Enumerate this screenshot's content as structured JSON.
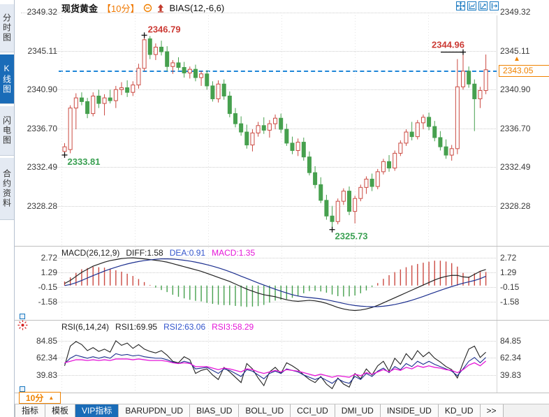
{
  "header": {
    "symbol": "现货黄金",
    "period": "【10分】",
    "indicator": "BIAS(12,-6,6)"
  },
  "toolbar": {
    "window_icons": [
      "move-chart",
      "fit-chart",
      "scale-chart",
      "popout-chart"
    ]
  },
  "sidebar": {
    "items": [
      {
        "label": "分时图",
        "active": false
      },
      {
        "label": "K线图",
        "active": true
      },
      {
        "label": "闪电图",
        "active": false
      },
      {
        "label": "合约资料",
        "active": false
      }
    ]
  },
  "price_panel": {
    "current_price": "2343.05",
    "axis": [
      {
        "t": "2349.32",
        "v": 2349.32
      },
      {
        "t": "2345.11",
        "v": 2345.11
      },
      {
        "t": "2340.90",
        "v": 2340.9
      },
      {
        "t": "2336.70",
        "v": 2336.7
      },
      {
        "t": "2332.49",
        "v": 2332.49
      },
      {
        "t": "2328.28",
        "v": 2328.28
      }
    ]
  },
  "macd_panel": {
    "title": "MACD(26,12,9)",
    "diff_label": "DIFF:1.58",
    "dea_label": "DEA:0.91",
    "macd_label": "MACD:1.35",
    "axis": [
      {
        "t": "2.72",
        "v": 2.72
      },
      {
        "t": "1.29",
        "v": 1.29
      },
      {
        "t": "-0.15",
        "v": -0.15
      },
      {
        "t": "-1.58",
        "v": -1.58
      }
    ]
  },
  "rsi_panel": {
    "title": "RSI(6,14,24)",
    "rsi1_label": "RSI1:69.95",
    "rsi2_label": "RSI2:63.06",
    "rsi3_label": "RSI3:58.29",
    "axis": [
      {
        "t": "84.85",
        "v": 84.85
      },
      {
        "t": "62.34",
        "v": 62.34
      },
      {
        "t": "39.83",
        "v": 39.83
      }
    ]
  },
  "footer": {
    "period_label": "10分",
    "tabs": [
      {
        "label": "指标",
        "active": false
      },
      {
        "label": "模板",
        "active": false
      },
      {
        "label": "VIP指标",
        "active": true
      },
      {
        "label": "BARUPDN_UD",
        "active": false
      },
      {
        "label": "BIAS_UD",
        "active": false
      },
      {
        "label": "BOLL_UD",
        "active": false
      },
      {
        "label": "CCI_UD",
        "active": false
      },
      {
        "label": "DMI_UD",
        "active": false
      },
      {
        "label": "INSIDE_UD",
        "active": false
      },
      {
        "label": "KD_UD",
        "active": false
      },
      {
        "label": ">>",
        "active": false
      }
    ]
  },
  "colors": {
    "up": "#cb4a42",
    "down": "#46a04e",
    "diff_line": "#222222",
    "dea_line": "#1c2f8f",
    "rsi1_line": "#222222",
    "rsi2_line": "#1c2f8f",
    "rsi3_line": "#e516d8",
    "accent_blue": "#1a6cb8",
    "accent_orange": "#ef8200",
    "dashed_price": "#1f86d8",
    "grid": "#cdcdcd"
  },
  "chart_data": {
    "type": "candlestick_with_indicators",
    "x_unit": "10-minute bars",
    "current_price": 2343.05,
    "candles": [
      [
        2334.2,
        2335.1,
        2333.81,
        2334.7
      ],
      [
        2334.4,
        2339.2,
        2334.0,
        2338.9
      ],
      [
        2338.9,
        2340.5,
        2336.6,
        2340.0
      ],
      [
        2340.0,
        2340.6,
        2339.2,
        2339.6
      ],
      [
        2339.6,
        2340.0,
        2337.8,
        2338.3
      ],
      [
        2338.3,
        2340.6,
        2338.0,
        2340.2
      ],
      [
        2340.2,
        2340.9,
        2338.9,
        2339.4
      ],
      [
        2339.4,
        2340.4,
        2338.1,
        2340.0
      ],
      [
        2340.0,
        2340.9,
        2339.4,
        2339.7
      ],
      [
        2339.7,
        2341.3,
        2338.9,
        2340.9
      ],
      [
        2340.9,
        2341.7,
        2340.3,
        2341.1
      ],
      [
        2341.1,
        2341.9,
        2340.1,
        2340.6
      ],
      [
        2340.6,
        2341.8,
        2340.2,
        2341.4
      ],
      [
        2341.4,
        2343.7,
        2341.0,
        2343.2
      ],
      [
        2343.2,
        2346.79,
        2342.9,
        2346.3
      ],
      [
        2346.4,
        2346.7,
        2344.2,
        2344.7
      ],
      [
        2344.7,
        2345.9,
        2344.1,
        2345.5
      ],
      [
        2345.5,
        2346.2,
        2344.6,
        2345.0
      ],
      [
        2345.0,
        2345.6,
        2342.9,
        2343.4
      ],
      [
        2343.4,
        2344.1,
        2342.6,
        2343.8
      ],
      [
        2343.8,
        2344.4,
        2343.0,
        2343.3
      ],
      [
        2343.3,
        2343.9,
        2342.2,
        2342.7
      ],
      [
        2342.7,
        2343.4,
        2342.1,
        2343.1
      ],
      [
        2343.1,
        2343.6,
        2341.8,
        2342.2
      ],
      [
        2342.2,
        2342.9,
        2341.3,
        2342.6
      ],
      [
        2342.6,
        2343.0,
        2340.9,
        2341.3
      ],
      [
        2341.3,
        2341.8,
        2339.6,
        2339.9
      ],
      [
        2339.9,
        2341.9,
        2339.5,
        2341.5
      ],
      [
        2341.5,
        2342.0,
        2339.8,
        2340.2
      ],
      [
        2340.2,
        2340.7,
        2337.9,
        2338.3
      ],
      [
        2338.3,
        2338.9,
        2336.8,
        2337.2
      ],
      [
        2337.2,
        2338.0,
        2335.9,
        2336.3
      ],
      [
        2336.3,
        2337.1,
        2334.5,
        2334.9
      ],
      [
        2334.9,
        2336.6,
        2334.2,
        2336.2
      ],
      [
        2336.2,
        2337.4,
        2335.8,
        2337.0
      ],
      [
        2337.0,
        2337.9,
        2336.1,
        2336.5
      ],
      [
        2336.5,
        2337.6,
        2335.7,
        2337.2
      ],
      [
        2337.2,
        2338.2,
        2336.6,
        2337.8
      ],
      [
        2337.8,
        2338.3,
        2336.2,
        2336.6
      ],
      [
        2336.6,
        2337.2,
        2334.8,
        2335.1
      ],
      [
        2335.1,
        2335.8,
        2333.9,
        2334.3
      ],
      [
        2334.3,
        2335.6,
        2333.7,
        2335.2
      ],
      [
        2335.2,
        2335.7,
        2333.2,
        2333.6
      ],
      [
        2333.6,
        2334.2,
        2331.6,
        2331.9
      ],
      [
        2331.9,
        2332.6,
        2330.2,
        2330.6
      ],
      [
        2330.6,
        2331.4,
        2328.6,
        2328.9
      ],
      [
        2328.9,
        2329.5,
        2326.8,
        2327.2
      ],
      [
        2327.2,
        2328.3,
        2325.73,
        2326.6
      ],
      [
        2326.6,
        2329.1,
        2326.3,
        2328.8
      ],
      [
        2328.8,
        2330.2,
        2328.4,
        2329.9
      ],
      [
        2329.9,
        2330.4,
        2327.3,
        2327.7
      ],
      [
        2327.7,
        2329.4,
        2326.4,
        2329.1
      ],
      [
        2329.1,
        2330.6,
        2328.8,
        2330.3
      ],
      [
        2330.3,
        2331.5,
        2329.6,
        2331.2
      ],
      [
        2331.2,
        2331.8,
        2329.9,
        2330.4
      ],
      [
        2330.4,
        2332.3,
        2330.1,
        2332.0
      ],
      [
        2332.0,
        2333.4,
        2331.7,
        2333.1
      ],
      [
        2333.1,
        2333.8,
        2332.0,
        2332.4
      ],
      [
        2332.4,
        2334.3,
        2332.1,
        2334.0
      ],
      [
        2334.0,
        2335.4,
        2333.7,
        2335.1
      ],
      [
        2335.1,
        2336.6,
        2334.8,
        2336.3
      ],
      [
        2336.3,
        2337.4,
        2335.4,
        2335.8
      ],
      [
        2335.8,
        2337.6,
        2335.5,
        2337.3
      ],
      [
        2337.3,
        2338.2,
        2336.6,
        2337.9
      ],
      [
        2337.9,
        2338.4,
        2336.5,
        2336.9
      ],
      [
        2336.9,
        2337.5,
        2335.3,
        2335.7
      ],
      [
        2335.7,
        2336.4,
        2334.3,
        2334.7
      ],
      [
        2334.7,
        2335.5,
        2333.4,
        2333.8
      ],
      [
        2333.8,
        2334.9,
        2333.2,
        2334.5
      ],
      [
        2334.5,
        2344.2,
        2333.9,
        2341.2
      ],
      [
        2341.2,
        2344.96,
        2340.9,
        2342.9
      ],
      [
        2342.9,
        2343.4,
        2341.1,
        2341.5
      ],
      [
        2341.5,
        2342.0,
        2336.4,
        2339.9
      ],
      [
        2339.9,
        2341.2,
        2338.9,
        2340.8
      ],
      [
        2340.8,
        2344.7,
        2340.4,
        2343.05
      ]
    ],
    "macd": {
      "hist_rule": "2*(diff-dea)",
      "diff": [
        0.2,
        0.5,
        0.9,
        1.3,
        1.6,
        1.9,
        2.1,
        2.3,
        2.45,
        2.55,
        2.65,
        2.7,
        2.72,
        2.68,
        2.62,
        2.55,
        2.48,
        2.4,
        2.3,
        2.15,
        2.0,
        1.85,
        1.7,
        1.55,
        1.4,
        1.2,
        1.0,
        0.8,
        0.6,
        0.4,
        0.15,
        -0.1,
        -0.35,
        -0.55,
        -0.75,
        -0.9,
        -1.0,
        -1.1,
        -1.25,
        -1.4,
        -1.5,
        -1.55,
        -1.5,
        -1.45,
        -1.5,
        -1.6,
        -1.75,
        -1.95,
        -2.15,
        -2.3,
        -2.4,
        -2.45,
        -2.4,
        -2.3,
        -2.15,
        -1.95,
        -1.7,
        -1.45,
        -1.2,
        -0.95,
        -0.7,
        -0.45,
        -0.2,
        0.05,
        0.3,
        0.55,
        0.75,
        0.9,
        1.0,
        1.0,
        0.85,
        0.8,
        1.1,
        1.4,
        1.58
      ],
      "dea": [
        0.0,
        0.1,
        0.28,
        0.5,
        0.74,
        0.98,
        1.2,
        1.42,
        1.62,
        1.8,
        1.97,
        2.12,
        2.25,
        2.36,
        2.45,
        2.52,
        2.58,
        2.62,
        2.62,
        2.6,
        2.55,
        2.48,
        2.4,
        2.3,
        2.18,
        2.05,
        1.9,
        1.74,
        1.56,
        1.36,
        1.15,
        0.92,
        0.7,
        0.48,
        0.26,
        0.05,
        -0.16,
        -0.36,
        -0.55,
        -0.73,
        -0.9,
        -1.03,
        -1.12,
        -1.18,
        -1.24,
        -1.31,
        -1.4,
        -1.51,
        -1.63,
        -1.76,
        -1.87,
        -1.96,
        -2.02,
        -2.06,
        -2.08,
        -2.07,
        -2.03,
        -1.96,
        -1.86,
        -1.74,
        -1.6,
        -1.44,
        -1.26,
        -1.07,
        -0.87,
        -0.67,
        -0.47,
        -0.28,
        -0.1,
        0.07,
        0.23,
        0.36,
        0.5,
        0.68,
        0.91
      ]
    },
    "rsi": {
      "rsi1": [
        52,
        78,
        84,
        80,
        72,
        76,
        71,
        74,
        70,
        85,
        79,
        82,
        75,
        80,
        74,
        71,
        69,
        72,
        66,
        58,
        56,
        64,
        60,
        42,
        46,
        48,
        40,
        34,
        50,
        44,
        37,
        30,
        55,
        48,
        36,
        26,
        44,
        50,
        42,
        56,
        52,
        47,
        40,
        34,
        30,
        38,
        28,
        22,
        36,
        28,
        24,
        42,
        35,
        48,
        40,
        52,
        58,
        45,
        62,
        54,
        68,
        60,
        72,
        64,
        70,
        62,
        57,
        51,
        47,
        36,
        56,
        74,
        78,
        63,
        69.95
      ],
      "rsi2": [
        55,
        62,
        66,
        64,
        62,
        64,
        62,
        64,
        62,
        68,
        66,
        67,
        65,
        66,
        64,
        63,
        62,
        62,
        60,
        57,
        55,
        58,
        56,
        48,
        49,
        50,
        46,
        42,
        48,
        46,
        42,
        38,
        47,
        45,
        40,
        35,
        42,
        45,
        42,
        48,
        46,
        44,
        40,
        37,
        34,
        37,
        33,
        29,
        35,
        31,
        29,
        38,
        34,
        42,
        38,
        45,
        49,
        43,
        51,
        47,
        55,
        51,
        58,
        54,
        58,
        54,
        51,
        48,
        45,
        39,
        48,
        58,
        63,
        56,
        63.06
      ],
      "rsi3": [
        56,
        58,
        60,
        60,
        59,
        60,
        59,
        60,
        59,
        61,
        61,
        61,
        60,
        61,
        60,
        59,
        59,
        59,
        58,
        56,
        55,
        56,
        55,
        51,
        51,
        51,
        49,
        47,
        49,
        48,
        46,
        44,
        48,
        47,
        44,
        42,
        44,
        46,
        44,
        47,
        46,
        45,
        43,
        41,
        39,
        41,
        39,
        37,
        39,
        38,
        37,
        41,
        39,
        43,
        41,
        44,
        47,
        44,
        48,
        46,
        50,
        48,
        52,
        50,
        52,
        50,
        49,
        47,
        46,
        43,
        47,
        53,
        56,
        52,
        58.29
      ]
    },
    "annotations": [
      {
        "text": "2346.79",
        "idx": 14,
        "price": 2346.79,
        "kind": "high",
        "color": "#cc3b35"
      },
      {
        "text": "2344.96",
        "idx": 70,
        "price": 2344.96,
        "kind": "high-line",
        "color": "#cc3b35"
      },
      {
        "text": "2333.81",
        "idx": 0,
        "price": 2333.81,
        "kind": "low",
        "color": "#3aa052"
      },
      {
        "text": "2325.73",
        "idx": 47,
        "price": 2325.73,
        "kind": "low",
        "color": "#3aa052"
      }
    ]
  }
}
